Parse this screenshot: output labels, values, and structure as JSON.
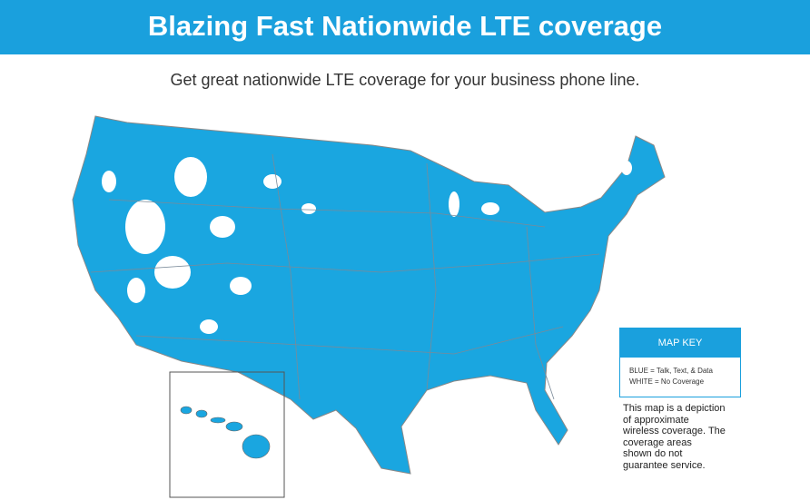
{
  "header": {
    "title": "Blazing Fast Nationwide LTE coverage"
  },
  "subtitle": "Get great nationwide LTE coverage for your business phone line.",
  "map_key": {
    "title": "MAP KEY",
    "items": [
      "BLUE = Talk, Text, & Data",
      "WHITE = No Coverage"
    ]
  },
  "disclaimer": [
    "This map is a depiction",
    "of approximate",
    "wireless coverage. The",
    "coverage areas",
    "shown do not",
    "guarantee service."
  ]
}
